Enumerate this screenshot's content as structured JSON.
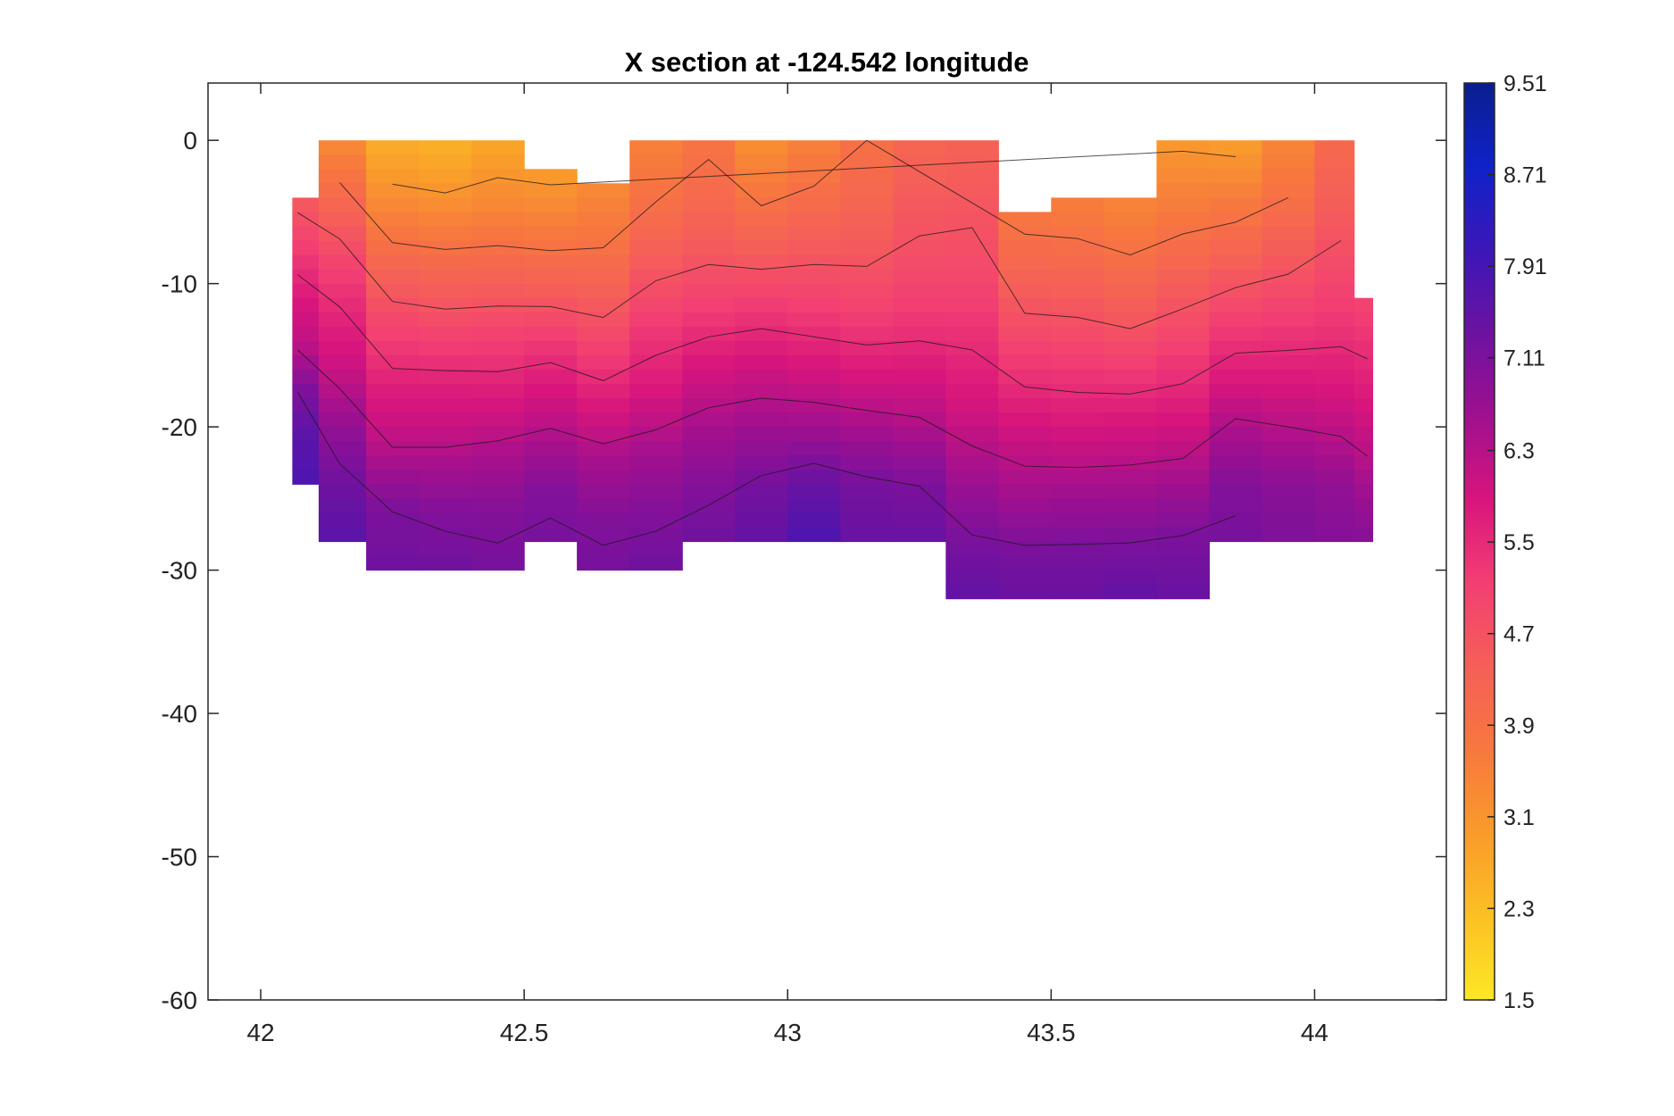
{
  "chart_data": {
    "type": "heatmap",
    "title": "X section at -124.542 longitude",
    "xlabel": "",
    "ylabel": "",
    "xlim": [
      41.9,
      44.25
    ],
    "ylim": [
      -60,
      4
    ],
    "xticks": [
      42,
      42.5,
      43,
      43.5,
      44
    ],
    "xtick_labels": [
      "42",
      "42.5",
      "43",
      "43.5",
      "44"
    ],
    "yticks": [
      0,
      -10,
      -20,
      -30,
      -40,
      -50,
      -60
    ],
    "ytick_labels": [
      "0",
      "-10",
      "-20",
      "-30",
      "-40",
      "-50",
      "-60"
    ],
    "grid": false,
    "colorbar": {
      "min": 1.5,
      "max": 9.51,
      "ticks": [
        1.5,
        2.3,
        3.1,
        3.9,
        4.7,
        5.5,
        6.3,
        7.11,
        7.91,
        8.71,
        9.51
      ],
      "tick_labels": [
        "1.5",
        "2.3",
        "3.1",
        "3.9",
        "4.7",
        "5.5",
        "6.3",
        "7.11",
        "7.91",
        "8.71",
        "9.51"
      ],
      "colormap": [
        "#fde725",
        "#fbc024",
        "#f99b2b",
        "#f7783e",
        "#f55f58",
        "#f23f73",
        "#d8157c",
        "#a0108f",
        "#6d12a0",
        "#3b17b8",
        "#0f22c8",
        "#0a1e8e"
      ]
    },
    "contour_levels": [
      2.3,
      3.1,
      3.9,
      4.7,
      5.5,
      6.3,
      7.11,
      7.91
    ],
    "sections": [
      {
        "x": 42.07,
        "top": -4.5,
        "bottom": -24,
        "values": [
          4.6,
          5.2,
          5.8,
          6.2,
          7.1,
          7.6,
          7.8
        ]
      },
      {
        "x": 42.15,
        "top": -0.5,
        "bottom": -28,
        "values": [
          3.4,
          4.2,
          5.0,
          5.6,
          6.1,
          6.8,
          7.3,
          7.6
        ]
      },
      {
        "x": 42.25,
        "top": 0,
        "bottom": -30,
        "values": [
          2.6,
          3.3,
          4.2,
          5.0,
          5.7,
          6.3,
          7.1,
          7.3
        ]
      },
      {
        "x": 42.35,
        "top": 0,
        "bottom": -30,
        "values": [
          2.5,
          3.2,
          4.1,
          4.9,
          5.7,
          6.3,
          7.0,
          7.3
        ]
      },
      {
        "x": 42.45,
        "top": -0.5,
        "bottom": -30,
        "values": [
          2.8,
          3.4,
          4.2,
          5.0,
          5.7,
          6.4,
          7.0,
          7.2
        ]
      },
      {
        "x": 42.55,
        "top": -2.5,
        "bottom": -28,
        "values": [
          3.0,
          3.6,
          4.3,
          5.1,
          5.8,
          6.4,
          7.0,
          7.2
        ]
      },
      {
        "x": 42.65,
        "top": -3,
        "bottom": -30,
        "values": [
          3.3,
          3.8,
          4.4,
          5.1,
          5.8,
          6.5,
          7.0,
          7.2
        ]
      },
      {
        "x": 42.75,
        "top": 0,
        "bottom": -30,
        "values": [
          3.5,
          3.9,
          4.5,
          5.2,
          5.8,
          6.5,
          7.0,
          7.3
        ]
      },
      {
        "x": 42.85,
        "top": 0,
        "bottom": -28,
        "values": [
          3.8,
          4.1,
          4.6,
          5.2,
          5.9,
          6.5,
          7.0,
          7.3
        ]
      },
      {
        "x": 42.95,
        "top": 0,
        "bottom": -28,
        "values": [
          3.2,
          3.8,
          4.5,
          5.3,
          6.0,
          6.6,
          7.2,
          7.5
        ]
      },
      {
        "x": 43.05,
        "top": 0,
        "bottom": -28,
        "values": [
          3.5,
          4.0,
          4.6,
          5.2,
          5.9,
          6.6,
          7.4,
          7.8
        ]
      },
      {
        "x": 43.15,
        "top": 0,
        "bottom": -28,
        "values": [
          3.9,
          4.2,
          4.6,
          5.1,
          5.8,
          6.5,
          7.2,
          7.4
        ]
      },
      {
        "x": 43.25,
        "top": 0,
        "bottom": -28,
        "values": [
          4.2,
          4.5,
          4.8,
          5.2,
          5.8,
          6.4,
          7.1,
          7.4
        ]
      },
      {
        "x": 43.35,
        "top": 0,
        "bottom": -32,
        "values": [
          4.3,
          4.6,
          4.9,
          5.4,
          5.9,
          6.5,
          7.1,
          7.5
        ]
      },
      {
        "x": 43.45,
        "top": -5,
        "bottom": -32,
        "values": [
          3.7,
          4.2,
          4.8,
          5.4,
          6.0,
          6.5,
          7.1,
          7.4
        ]
      },
      {
        "x": 43.55,
        "top": -4.5,
        "bottom": -32,
        "values": [
          3.6,
          4.1,
          4.7,
          5.3,
          5.9,
          6.5,
          7.1,
          7.4
        ]
      },
      {
        "x": 43.65,
        "top": -4,
        "bottom": -32,
        "values": [
          3.4,
          3.9,
          4.5,
          5.2,
          5.9,
          6.5,
          7.1,
          7.5
        ]
      },
      {
        "x": 43.75,
        "top": 0,
        "bottom": -32,
        "values": [
          3.0,
          3.6,
          4.3,
          5.0,
          5.7,
          6.4,
          7.1,
          7.4
        ]
      },
      {
        "x": 43.85,
        "top": 0,
        "bottom": -28,
        "values": [
          2.9,
          3.6,
          4.3,
          5.0,
          5.7,
          6.4,
          7.0,
          7.2
        ]
      },
      {
        "x": 43.95,
        "top": 0,
        "bottom": -28,
        "values": [
          3.4,
          3.9,
          4.5,
          5.1,
          5.7,
          6.3,
          6.9,
          7.1
        ]
      },
      {
        "x": 44.05,
        "top": 0,
        "bottom": -28,
        "values": [
          4.1,
          4.4,
          4.8,
          5.2,
          5.7,
          6.2,
          6.8,
          7.0
        ]
      },
      {
        "x": 44.1,
        "top": -11,
        "bottom": -28,
        "values": [
          5.0,
          5.4,
          5.8,
          6.2,
          6.6,
          7.0
        ]
      }
    ]
  }
}
